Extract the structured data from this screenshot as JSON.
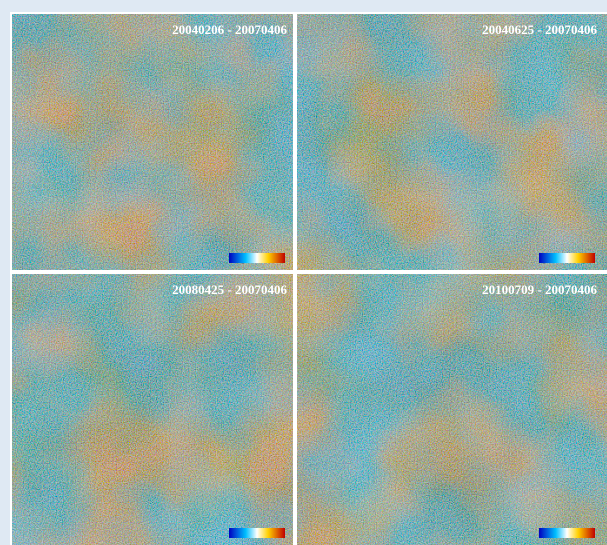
{
  "panels": [
    {
      "label": "20040206 - 20070406"
    },
    {
      "label": "20040625 - 20070406"
    },
    {
      "label": "20080425 - 20070406"
    },
    {
      "label": "20100709 - 20070406"
    }
  ]
}
